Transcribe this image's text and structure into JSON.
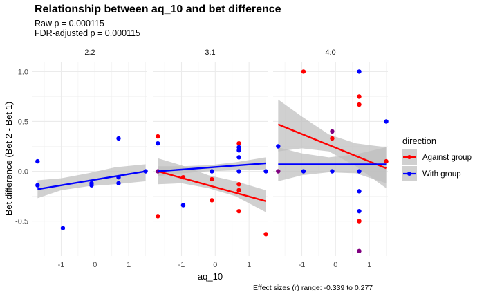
{
  "title": "Relationship between aq_10 and bet difference",
  "subtitle_lines": [
    "Raw p = 0.000115",
    "FDR-adjusted p = 0.000115"
  ],
  "caption": "Effect sizes (r) range: -0.339 to 0.277",
  "colors": {
    "against": "#ff0000",
    "with": "#0000ff",
    "overlap": "#800080",
    "band": "#bebebe"
  },
  "chart_data": {
    "type": "scatter",
    "xlabel": "aq_10",
    "ylabel": "Bet difference (Bet 2 - Bet 1)",
    "xlim": [
      -1.85,
      1.55
    ],
    "ylim": [
      -0.85,
      1.1
    ],
    "xticks": [
      -1,
      0,
      1
    ],
    "xtick_labels": [
      "-1",
      "0",
      "1"
    ],
    "yticks": [
      -0.5,
      0.0,
      0.5,
      1.0
    ],
    "ytick_labels": [
      "-0.5",
      "0.0",
      "0.5",
      "1.0"
    ],
    "grid": true,
    "legend": {
      "title": "direction",
      "position": "right",
      "entries": [
        {
          "label": "Against group",
          "key": "against"
        },
        {
          "label": "With group",
          "key": "with"
        }
      ]
    },
    "facets": [
      {
        "name": "2:2",
        "points": [
          {
            "x": -1.7,
            "y": 0.1,
            "group": "with"
          },
          {
            "x": -1.7,
            "y": -0.14,
            "group": "with"
          },
          {
            "x": -0.95,
            "y": -0.57,
            "group": "with"
          },
          {
            "x": -0.1,
            "y": -0.12,
            "group": "with"
          },
          {
            "x": -0.1,
            "y": -0.14,
            "group": "with"
          },
          {
            "x": 0.7,
            "y": 0.33,
            "group": "with"
          },
          {
            "x": 0.7,
            "y": -0.06,
            "group": "with"
          },
          {
            "x": 0.7,
            "y": -0.12,
            "group": "with"
          },
          {
            "x": 1.5,
            "y": 0.0,
            "group": "with"
          }
        ],
        "fits": [
          {
            "group": "with",
            "x": [
              -1.7,
              1.5
            ],
            "y": [
              -0.18,
              0.0
            ],
            "band_x": [
              -1.7,
              -1.0,
              -0.2,
              0.6,
              1.5
            ],
            "band_lo": [
              -0.27,
              -0.19,
              -0.15,
              -0.13,
              -0.1
            ],
            "band_hi": [
              -0.09,
              -0.07,
              -0.02,
              0.04,
              0.07
            ]
          }
        ]
      },
      {
        "name": "3:1",
        "points": [
          {
            "x": -1.7,
            "y": 0.35,
            "group": "against"
          },
          {
            "x": -1.7,
            "y": 0.28,
            "group": "with"
          },
          {
            "x": -1.7,
            "y": 0.0,
            "group": "overlap"
          },
          {
            "x": -1.7,
            "y": -0.45,
            "group": "against"
          },
          {
            "x": -0.95,
            "y": -0.06,
            "group": "against"
          },
          {
            "x": -0.95,
            "y": -0.34,
            "group": "with"
          },
          {
            "x": -0.1,
            "y": 0.0,
            "group": "with"
          },
          {
            "x": -0.1,
            "y": -0.08,
            "group": "against"
          },
          {
            "x": -0.1,
            "y": -0.29,
            "group": "against"
          },
          {
            "x": 0.7,
            "y": 0.28,
            "group": "against"
          },
          {
            "x": 0.7,
            "y": 0.24,
            "group": "with"
          },
          {
            "x": 0.7,
            "y": 0.21,
            "group": "with"
          },
          {
            "x": 0.7,
            "y": 0.14,
            "group": "with"
          },
          {
            "x": 0.7,
            "y": 0.0,
            "group": "with"
          },
          {
            "x": 0.7,
            "y": -0.13,
            "group": "against"
          },
          {
            "x": 0.7,
            "y": -0.19,
            "group": "against"
          },
          {
            "x": 0.7,
            "y": -0.4,
            "group": "against"
          },
          {
            "x": 1.5,
            "y": 0.0,
            "group": "with"
          },
          {
            "x": 1.5,
            "y": -0.63,
            "group": "against"
          }
        ],
        "fits": [
          {
            "group": "against",
            "x": [
              -1.7,
              1.5
            ],
            "y": [
              0.0,
              -0.3
            ],
            "band_x": [
              -1.7,
              -1.0,
              -0.2,
              0.6,
              1.5
            ],
            "band_lo": [
              -0.13,
              -0.12,
              -0.17,
              -0.25,
              -0.41
            ],
            "band_hi": [
              0.13,
              0.06,
              -0.04,
              -0.1,
              -0.19
            ]
          },
          {
            "group": "with",
            "x": [
              -1.7,
              1.5
            ],
            "y": [
              0.0,
              0.08
            ],
            "band_x": [
              -1.7,
              -1.0,
              -0.2,
              0.6,
              1.5
            ],
            "band_lo": [
              -0.05,
              -0.02,
              0.0,
              0.01,
              0.02
            ],
            "band_hi": [
              0.05,
              0.05,
              0.06,
              0.09,
              0.14
            ]
          }
        ]
      },
      {
        "name": "4:0",
        "points": [
          {
            "x": -1.7,
            "y": 0.25,
            "group": "with"
          },
          {
            "x": -1.7,
            "y": 0.0,
            "group": "overlap"
          },
          {
            "x": -0.95,
            "y": 1.0,
            "group": "against"
          },
          {
            "x": -0.95,
            "y": 0.0,
            "group": "with"
          },
          {
            "x": -0.1,
            "y": 0.4,
            "group": "overlap"
          },
          {
            "x": -0.1,
            "y": 0.33,
            "group": "against"
          },
          {
            "x": -0.1,
            "y": 0.0,
            "group": "with"
          },
          {
            "x": 0.7,
            "y": 1.0,
            "group": "with"
          },
          {
            "x": 0.7,
            "y": 0.75,
            "group": "against"
          },
          {
            "x": 0.7,
            "y": 0.67,
            "group": "against"
          },
          {
            "x": 0.7,
            "y": 0.0,
            "group": "with"
          },
          {
            "x": 0.7,
            "y": -0.2,
            "group": "with"
          },
          {
            "x": 0.7,
            "y": -0.4,
            "group": "with"
          },
          {
            "x": 0.7,
            "y": -0.5,
            "group": "against"
          },
          {
            "x": 0.7,
            "y": -0.8,
            "group": "overlap"
          },
          {
            "x": 1.5,
            "y": 0.5,
            "group": "with"
          },
          {
            "x": 1.5,
            "y": 0.1,
            "group": "against"
          }
        ],
        "fits": [
          {
            "group": "against",
            "x": [
              -1.7,
              1.5
            ],
            "y": [
              0.47,
              0.03
            ],
            "band_x": [
              -1.7,
              -1.0,
              -0.2,
              0.6,
              1.5
            ],
            "band_lo": [
              0.2,
              0.23,
              0.2,
              0.05,
              -0.17
            ],
            "band_hi": [
              0.72,
              0.55,
              0.37,
              0.28,
              0.24
            ]
          },
          {
            "group": "with",
            "x": [
              -1.7,
              1.5
            ],
            "y": [
              0.07,
              0.07
            ],
            "band_x": [
              -1.7,
              -1.0,
              -0.2,
              0.6,
              1.5
            ],
            "band_lo": [
              -0.1,
              -0.04,
              -0.01,
              -0.02,
              -0.12
            ],
            "band_hi": [
              0.24,
              0.18,
              0.14,
              0.17,
              0.24
            ]
          }
        ]
      }
    ]
  }
}
